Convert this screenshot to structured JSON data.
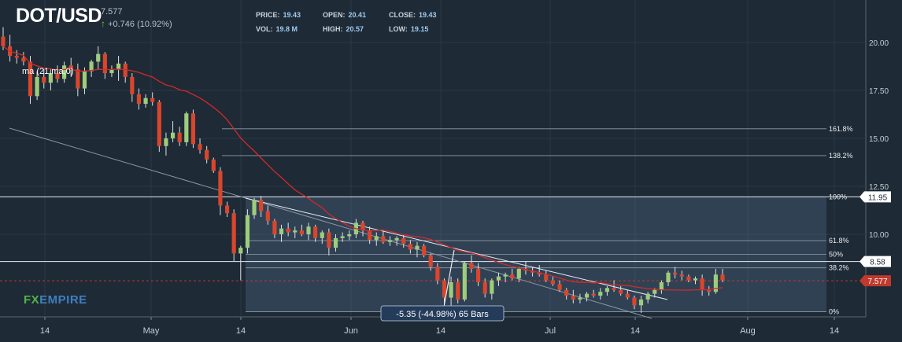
{
  "header": {
    "pair": "DOT/USD",
    "last": "7.577",
    "change": "+0.746 (10.92%)",
    "stats": [
      {
        "label": "PRICE:",
        "value": "19.43"
      },
      {
        "label": "OPEN:",
        "value": "20.41"
      },
      {
        "label": "CLOSE:",
        "value": "19.43"
      },
      {
        "label": "VOL:",
        "value": "19.8 M"
      },
      {
        "label": "HIGH:",
        "value": "20.57"
      },
      {
        "label": "LOW:",
        "value": "19.15"
      }
    ]
  },
  "logo": {
    "fx": "FX",
    "empire": "EMPIRE"
  },
  "chart_data": {
    "type": "candlestick",
    "y_ticks": [
      "20.00",
      "17.50",
      "15.00",
      "12.50",
      "10.00"
    ],
    "ylim": [
      4.2,
      23.0
    ],
    "x_ticks": [
      "14",
      "May",
      "14",
      "Jun",
      "14",
      "Jul",
      "14",
      "Aug",
      "14"
    ],
    "indicator_label": "ma (21,ma,0)",
    "fib_levels": [
      {
        "label": "161.8%",
        "value": 15.5
      },
      {
        "label": "138.2%",
        "value": 14.1
      },
      {
        "label": "100%",
        "value": 11.95
      },
      {
        "label": "61.8%",
        "value": 9.67
      },
      {
        "label": "50%",
        "value": 8.95
      },
      {
        "label": "38.2%",
        "value": 8.25
      },
      {
        "label": "0%",
        "value": 5.96
      }
    ],
    "price_tags": [
      {
        "label": "11.95",
        "value": 11.95
      },
      {
        "label": "8.58",
        "value": 8.58
      },
      {
        "label": "7.577",
        "value": 7.577
      }
    ],
    "measure_label": "-5.35 (-44.98%) 65 Bars",
    "candles": [
      [
        20.3,
        20.8,
        19.6,
        19.8
      ],
      [
        19.8,
        20.4,
        19.0,
        19.3
      ],
      [
        19.3,
        19.6,
        18.9,
        19.2
      ],
      [
        19.2,
        19.5,
        18.8,
        19.0
      ],
      [
        19.0,
        19.3,
        16.8,
        17.2
      ],
      [
        17.2,
        18.5,
        17.0,
        18.2
      ],
      [
        18.2,
        18.6,
        17.6,
        17.9
      ],
      [
        17.9,
        18.6,
        17.5,
        18.4
      ],
      [
        18.4,
        18.8,
        17.9,
        18.1
      ],
      [
        18.1,
        19.0,
        17.9,
        18.8
      ],
      [
        18.8,
        19.2,
        18.2,
        18.6
      ],
      [
        18.6,
        18.9,
        17.2,
        17.6
      ],
      [
        17.6,
        18.7,
        17.3,
        18.5
      ],
      [
        18.5,
        19.1,
        18.2,
        19.0
      ],
      [
        19.0,
        19.8,
        18.6,
        19.4
      ],
      [
        19.4,
        19.5,
        18.1,
        18.4
      ],
      [
        18.4,
        18.8,
        18.2,
        18.6
      ],
      [
        18.6,
        19.3,
        18.0,
        18.9
      ],
      [
        18.9,
        19.0,
        17.9,
        18.2
      ],
      [
        18.2,
        18.4,
        16.9,
        17.3
      ],
      [
        17.3,
        17.6,
        16.5,
        16.8
      ],
      [
        16.8,
        17.3,
        16.6,
        17.1
      ],
      [
        17.1,
        17.4,
        16.7,
        16.9
      ],
      [
        16.9,
        17.0,
        14.3,
        14.6
      ],
      [
        14.6,
        15.3,
        14.1,
        15.0
      ],
      [
        15.0,
        15.9,
        14.8,
        15.3
      ],
      [
        15.3,
        15.6,
        14.6,
        14.8
      ],
      [
        14.8,
        16.4,
        14.6,
        16.3
      ],
      [
        16.3,
        16.5,
        14.5,
        14.7
      ],
      [
        14.7,
        15.0,
        14.2,
        14.4
      ],
      [
        14.4,
        14.6,
        13.7,
        13.9
      ],
      [
        13.9,
        14.0,
        13.2,
        13.3
      ],
      [
        13.3,
        13.5,
        11.0,
        11.5
      ],
      [
        11.5,
        11.7,
        10.9,
        11.1
      ],
      [
        11.1,
        11.3,
        8.6,
        9.0
      ],
      [
        9.0,
        9.4,
        7.6,
        9.3
      ],
      [
        9.3,
        11.3,
        9.0,
        11.0
      ],
      [
        11.0,
        11.9,
        10.8,
        11.8
      ],
      [
        11.8,
        12.0,
        10.9,
        11.2
      ],
      [
        11.2,
        11.5,
        10.5,
        10.7
      ],
      [
        10.7,
        10.8,
        9.8,
        10.0
      ],
      [
        10.0,
        10.5,
        9.6,
        10.3
      ],
      [
        10.3,
        10.6,
        9.9,
        10.1
      ],
      [
        10.1,
        10.4,
        9.8,
        10.2
      ],
      [
        10.2,
        10.5,
        9.9,
        10.0
      ],
      [
        10.0,
        10.6,
        9.7,
        10.4
      ],
      [
        10.4,
        10.5,
        9.6,
        9.8
      ],
      [
        9.8,
        10.2,
        9.5,
        10.1
      ],
      [
        10.1,
        10.3,
        8.9,
        9.3
      ],
      [
        9.3,
        10.0,
        9.1,
        9.8
      ],
      [
        9.8,
        10.1,
        9.6,
        9.9
      ],
      [
        9.9,
        10.2,
        9.7,
        10.0
      ],
      [
        10.0,
        10.8,
        9.8,
        10.6
      ],
      [
        10.6,
        10.7,
        9.9,
        10.2
      ],
      [
        10.2,
        10.4,
        9.5,
        9.7
      ],
      [
        9.7,
        10.1,
        9.4,
        9.9
      ],
      [
        9.9,
        10.2,
        9.5,
        9.6
      ],
      [
        9.6,
        9.9,
        9.4,
        9.7
      ],
      [
        9.7,
        9.9,
        9.4,
        9.8
      ],
      [
        9.8,
        10.0,
        9.3,
        9.5
      ],
      [
        9.5,
        9.7,
        9.0,
        9.2
      ],
      [
        9.2,
        9.6,
        8.8,
        9.4
      ],
      [
        9.4,
        9.5,
        8.8,
        8.9
      ],
      [
        8.9,
        9.0,
        8.1,
        8.3
      ],
      [
        8.3,
        8.5,
        7.4,
        7.6
      ],
      [
        7.6,
        7.7,
        6.3,
        6.7
      ],
      [
        6.7,
        7.8,
        6.2,
        7.5
      ],
      [
        7.5,
        7.7,
        6.4,
        6.6
      ],
      [
        6.6,
        8.6,
        6.5,
        8.5
      ],
      [
        8.5,
        8.9,
        8.0,
        8.2
      ],
      [
        8.2,
        8.5,
        7.3,
        7.5
      ],
      [
        7.5,
        7.7,
        6.7,
        6.9
      ],
      [
        6.9,
        7.7,
        6.6,
        7.6
      ],
      [
        7.6,
        8.0,
        7.3,
        7.8
      ],
      [
        7.8,
        8.0,
        7.5,
        7.9
      ],
      [
        7.9,
        8.2,
        7.6,
        7.7
      ],
      [
        7.7,
        8.3,
        7.5,
        8.2
      ],
      [
        8.2,
        8.6,
        7.9,
        8.1
      ],
      [
        8.1,
        8.3,
        7.8,
        8.0
      ],
      [
        8.0,
        8.4,
        7.8,
        7.9
      ],
      [
        7.9,
        8.1,
        7.5,
        7.6
      ],
      [
        7.6,
        7.8,
        7.3,
        7.4
      ],
      [
        7.4,
        7.6,
        7.0,
        7.1
      ],
      [
        7.1,
        7.2,
        6.6,
        6.8
      ],
      [
        6.8,
        7.1,
        6.4,
        6.6
      ],
      [
        6.6,
        6.9,
        6.4,
        6.7
      ],
      [
        6.7,
        7.0,
        6.5,
        6.9
      ],
      [
        6.9,
        7.1,
        6.7,
        6.8
      ],
      [
        6.8,
        7.2,
        6.6,
        7.0
      ],
      [
        7.0,
        7.3,
        6.8,
        7.2
      ],
      [
        7.2,
        7.6,
        7.0,
        7.1
      ],
      [
        7.1,
        7.3,
        6.8,
        6.9
      ],
      [
        6.9,
        7.1,
        6.6,
        6.7
      ],
      [
        6.7,
        6.8,
        6.1,
        6.3
      ],
      [
        6.3,
        6.8,
        5.9,
        6.6
      ],
      [
        6.6,
        7.0,
        6.4,
        6.9
      ],
      [
        6.9,
        7.2,
        6.7,
        7.1
      ],
      [
        7.1,
        7.6,
        6.9,
        7.5
      ],
      [
        7.5,
        8.1,
        7.3,
        8.0
      ],
      [
        8.0,
        8.3,
        7.7,
        7.9
      ],
      [
        7.9,
        8.1,
        7.6,
        7.8
      ],
      [
        7.8,
        7.9,
        7.5,
        7.6
      ],
      [
        7.6,
        7.8,
        7.4,
        7.7
      ],
      [
        7.7,
        7.9,
        6.8,
        7.1
      ],
      [
        7.1,
        7.3,
        6.8,
        7.0
      ],
      [
        7.0,
        8.2,
        6.9,
        7.9
      ],
      [
        7.9,
        8.2,
        7.5,
        7.6
      ]
    ]
  }
}
